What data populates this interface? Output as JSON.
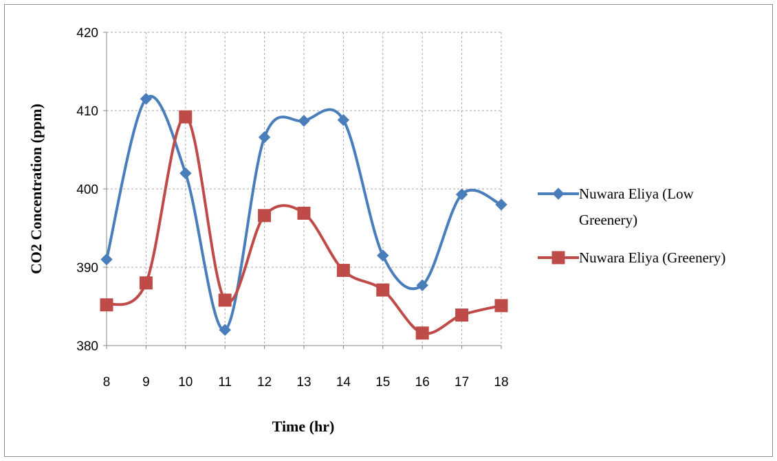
{
  "chart_data": {
    "type": "line",
    "title": "",
    "xlabel": "Time (hr)",
    "ylabel": "CO2 Concentration (ppm)",
    "x": [
      8,
      9,
      10,
      11,
      12,
      13,
      14,
      15,
      16,
      17,
      18
    ],
    "ylim": [
      380,
      420
    ],
    "yticks": [
      380,
      390,
      400,
      410,
      420
    ],
    "grid": true,
    "legend_position": "right",
    "series": [
      {
        "name_lines": [
          "Nuwara Eliya (Low",
          "Greenery)"
        ],
        "color": "#4a7ebb",
        "marker": "diamond",
        "values": [
          391.0,
          411.5,
          402.0,
          382.0,
          406.6,
          408.7,
          408.8,
          391.5,
          387.7,
          399.3,
          398.0
        ]
      },
      {
        "name_lines": [
          "Nuwara Eliya (Greenery)"
        ],
        "color": "#be4b48",
        "marker": "square",
        "values": [
          385.2,
          388.0,
          409.2,
          385.8,
          396.6,
          396.9,
          389.6,
          387.1,
          381.6,
          383.9,
          385.1
        ]
      }
    ]
  }
}
